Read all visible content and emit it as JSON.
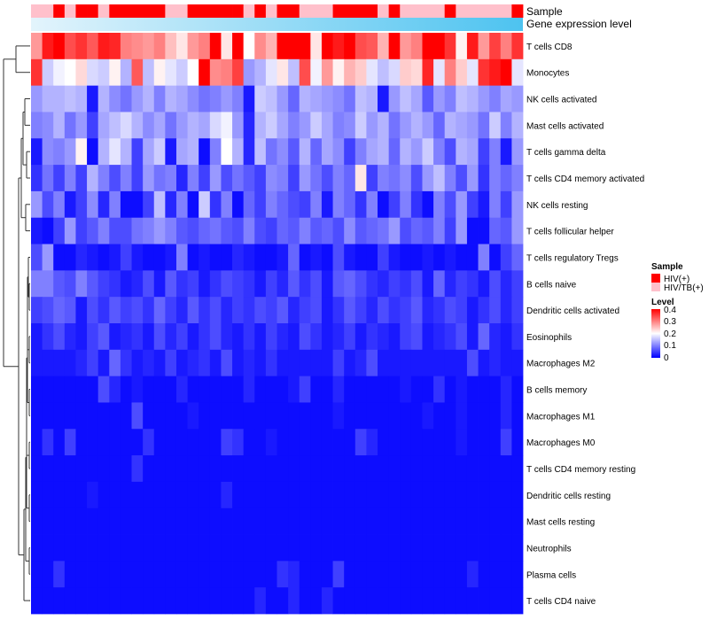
{
  "chart_data": {
    "type": "heatmap",
    "title": "",
    "xlabel": "",
    "ylabel": "",
    "annotations": {
      "sample_track_label": "Sample",
      "gene_track_label": "Gene expression level"
    },
    "legend": {
      "sample": {
        "title": "Sample",
        "entries": [
          {
            "label": "HIV(+)",
            "color": "#FF0000"
          },
          {
            "label": "HIV/TB(+)",
            "color": "#FFC0CB"
          }
        ]
      },
      "level": {
        "title": "Level",
        "ticks": [
          "0.4",
          "0.3",
          "0.2",
          "0.1",
          "0"
        ],
        "range": [
          0,
          0.4
        ],
        "colors": {
          "low": "#0000FF",
          "mid": "#FFFFFF",
          "high": "#FF0000"
        }
      }
    },
    "rows": [
      "T cells CD8",
      "Monocytes",
      "NK cells activated",
      "Mast cells activated",
      "T cells gamma delta",
      "T cells CD4 memory activated",
      "NK cells resting",
      "T cells follicular helper",
      "T cells regulatory  Tregs",
      "B cells naive",
      "Dendritic cells activated",
      "Eosinophils",
      "Macrophages M2",
      "B cells memory",
      "Macrophages M1",
      "Macrophages M0",
      "T cells CD4 memory resting",
      "Dendritic cells resting",
      "Mast cells resting",
      "Neutrophils",
      "Plasma cells",
      "T cells CD4 naive"
    ],
    "column_count": 44,
    "sample_groups": [
      "HIV/TB(+)",
      "HIV/TB(+)",
      "HIV(+)",
      "HIV/TB(+)",
      "HIV(+)",
      "HIV(+)",
      "HIV/TB(+)",
      "HIV(+)",
      "HIV(+)",
      "HIV(+)",
      "HIV(+)",
      "HIV(+)",
      "HIV/TB(+)",
      "HIV/TB(+)",
      "HIV(+)",
      "HIV(+)",
      "HIV(+)",
      "HIV(+)",
      "HIV(+)",
      "HIV/TB(+)",
      "HIV(+)",
      "HIV/TB(+)",
      "HIV(+)",
      "HIV(+)",
      "HIV/TB(+)",
      "HIV/TB(+)",
      "HIV/TB(+)",
      "HIV(+)",
      "HIV(+)",
      "HIV(+)",
      "HIV(+)",
      "HIV/TB(+)",
      "HIV(+)",
      "HIV/TB(+)",
      "HIV/TB(+)",
      "HIV/TB(+)",
      "HIV/TB(+)",
      "HIV(+)",
      "HIV/TB(+)",
      "HIV/TB(+)",
      "HIV/TB(+)",
      "HIV/TB(+)",
      "HIV/TB(+)",
      "HIV(+)"
    ],
    "values": [
      [
        0.28,
        0.38,
        0.4,
        0.34,
        0.36,
        0.33,
        0.38,
        0.37,
        0.3,
        0.29,
        0.28,
        0.3,
        0.25,
        0.22,
        0.28,
        0.3,
        0.4,
        0.22,
        0.4,
        0.2,
        0.29,
        0.26,
        0.4,
        0.4,
        0.4,
        0.22,
        0.4,
        0.38,
        0.4,
        0.34,
        0.33,
        0.26,
        0.4,
        0.28,
        0.3,
        0.4,
        0.4,
        0.36,
        0.21,
        0.38,
        0.28,
        0.35,
        0.3,
        0.36
      ],
      [
        0.36,
        0.16,
        0.19,
        0.2,
        0.23,
        0.17,
        0.16,
        0.21,
        0.14,
        0.33,
        0.15,
        0.21,
        0.18,
        0.16,
        0.2,
        0.4,
        0.29,
        0.3,
        0.35,
        0.12,
        0.14,
        0.18,
        0.22,
        0.15,
        0.34,
        0.19,
        0.28,
        0.21,
        0.26,
        0.24,
        0.18,
        0.15,
        0.17,
        0.24,
        0.23,
        0.37,
        0.18,
        0.3,
        0.24,
        0.18,
        0.36,
        0.38,
        0.4,
        0.18
      ],
      [
        0.12,
        0.14,
        0.14,
        0.15,
        0.14,
        0.02,
        0.14,
        0.11,
        0.09,
        0.12,
        0.14,
        0.1,
        0.14,
        0.13,
        0.11,
        0.09,
        0.1,
        0.12,
        0.1,
        0.02,
        0.16,
        0.15,
        0.12,
        0.08,
        0.14,
        0.13,
        0.12,
        0.11,
        0.09,
        0.15,
        0.14,
        0.02,
        0.12,
        0.15,
        0.13,
        0.07,
        0.12,
        0.1,
        0.15,
        0.14,
        0.12,
        0.1,
        0.13,
        0.12
      ],
      [
        0.1,
        0.11,
        0.14,
        0.09,
        0.12,
        0.05,
        0.13,
        0.15,
        0.17,
        0.14,
        0.11,
        0.13,
        0.09,
        0.12,
        0.14,
        0.13,
        0.17,
        0.19,
        0.12,
        0.03,
        0.14,
        0.16,
        0.13,
        0.1,
        0.12,
        0.16,
        0.13,
        0.1,
        0.11,
        0.16,
        0.12,
        0.14,
        0.09,
        0.12,
        0.14,
        0.12,
        0.08,
        0.14,
        0.13,
        0.12,
        0.09,
        0.16,
        0.1,
        0.14
      ],
      [
        0.02,
        0.11,
        0.1,
        0.12,
        0.21,
        0.01,
        0.14,
        0.18,
        0.14,
        0.05,
        0.13,
        0.16,
        0.02,
        0.13,
        0.14,
        0.01,
        0.1,
        0.2,
        0.14,
        0.03,
        0.15,
        0.09,
        0.11,
        0.07,
        0.14,
        0.08,
        0.13,
        0.11,
        0.05,
        0.1,
        0.13,
        0.14,
        0.08,
        0.14,
        0.12,
        0.16,
        0.1,
        0.06,
        0.14,
        0.13,
        0.05,
        0.1,
        0.02,
        0.12
      ],
      [
        0.04,
        0.09,
        0.05,
        0.1,
        0.05,
        0.14,
        0.1,
        0.06,
        0.1,
        0.05,
        0.12,
        0.09,
        0.1,
        0.03,
        0.1,
        0.05,
        0.12,
        0.06,
        0.09,
        0.07,
        0.05,
        0.11,
        0.1,
        0.05,
        0.12,
        0.09,
        0.06,
        0.1,
        0.08,
        0.22,
        0.05,
        0.1,
        0.09,
        0.11,
        0.06,
        0.12,
        0.15,
        0.1,
        0.06,
        0.12,
        0.04,
        0.1,
        0.08,
        0.1
      ],
      [
        0.12,
        0.06,
        0.1,
        0.02,
        0.05,
        0.11,
        0.03,
        0.1,
        0.01,
        0.01,
        0.05,
        0.15,
        0.03,
        0.1,
        0.01,
        0.16,
        0.04,
        0.1,
        0.01,
        0.08,
        0.05,
        0.1,
        0.08,
        0.06,
        0.05,
        0.1,
        0.02,
        0.1,
        0.08,
        0.04,
        0.1,
        0.01,
        0.05,
        0.1,
        0.04,
        0.01,
        0.1,
        0.06,
        0.12,
        0.05,
        0.02,
        0.1,
        0.05,
        0.12
      ],
      [
        0.02,
        0.01,
        0.05,
        0.12,
        0.05,
        0.07,
        0.1,
        0.06,
        0.06,
        0.09,
        0.1,
        0.12,
        0.1,
        0.07,
        0.06,
        0.08,
        0.09,
        0.07,
        0.06,
        0.1,
        0.06,
        0.05,
        0.08,
        0.07,
        0.1,
        0.07,
        0.08,
        0.06,
        0.11,
        0.07,
        0.08,
        0.09,
        0.12,
        0.06,
        0.08,
        0.07,
        0.1,
        0.05,
        0.12,
        0.01,
        0.01,
        0.08,
        0.07,
        0.12
      ],
      [
        0.06,
        0.12,
        0.01,
        0.01,
        0.03,
        0.02,
        0.01,
        0.02,
        0.05,
        0.02,
        0.01,
        0.01,
        0.02,
        0.1,
        0.01,
        0.02,
        0.01,
        0.01,
        0.03,
        0.02,
        0.01,
        0.01,
        0.02,
        0.08,
        0.01,
        0.02,
        0.01,
        0.06,
        0.02,
        0.01,
        0.01,
        0.05,
        0.02,
        0.01,
        0.01,
        0.02,
        0.01,
        0.02,
        0.01,
        0.01,
        0.1,
        0.01,
        0.05,
        0.08
      ],
      [
        0.1,
        0.1,
        0.07,
        0.06,
        0.1,
        0.07,
        0.05,
        0.04,
        0.02,
        0.03,
        0.06,
        0.02,
        0.07,
        0.04,
        0.05,
        0.02,
        0.04,
        0.06,
        0.05,
        0.04,
        0.02,
        0.05,
        0.03,
        0.07,
        0.04,
        0.06,
        0.02,
        0.07,
        0.08,
        0.06,
        0.04,
        0.03,
        0.05,
        0.04,
        0.06,
        0.02,
        0.08,
        0.03,
        0.05,
        0.04,
        0.02,
        0.06,
        0.03,
        0.05
      ],
      [
        0.05,
        0.06,
        0.08,
        0.07,
        0.02,
        0.06,
        0.04,
        0.07,
        0.05,
        0.06,
        0.04,
        0.08,
        0.05,
        0.03,
        0.07,
        0.04,
        0.06,
        0.03,
        0.05,
        0.04,
        0.06,
        0.05,
        0.07,
        0.03,
        0.05,
        0.06,
        0.02,
        0.04,
        0.07,
        0.05,
        0.03,
        0.06,
        0.04,
        0.05,
        0.07,
        0.03,
        0.04,
        0.06,
        0.05,
        0.02,
        0.04,
        0.06,
        0.03,
        0.05
      ],
      [
        0.02,
        0.04,
        0.06,
        0.03,
        0.02,
        0.05,
        0.07,
        0.02,
        0.03,
        0.04,
        0.02,
        0.06,
        0.03,
        0.05,
        0.02,
        0.04,
        0.06,
        0.03,
        0.02,
        0.04,
        0.02,
        0.05,
        0.03,
        0.02,
        0.06,
        0.04,
        0.02,
        0.03,
        0.05,
        0.02,
        0.04,
        0.03,
        0.02,
        0.05,
        0.06,
        0.02,
        0.03,
        0.04,
        0.06,
        0.02,
        0.08,
        0.03,
        0.02,
        0.04
      ],
      [
        0.02,
        0.02,
        0.02,
        0.02,
        0.03,
        0.05,
        0.02,
        0.08,
        0.04,
        0.02,
        0.03,
        0.02,
        0.05,
        0.02,
        0.03,
        0.04,
        0.02,
        0.06,
        0.02,
        0.03,
        0.02,
        0.04,
        0.02,
        0.02,
        0.02,
        0.02,
        0.02,
        0.05,
        0.02,
        0.03,
        0.06,
        0.02,
        0.02,
        0.02,
        0.02,
        0.02,
        0.02,
        0.02,
        0.02,
        0.06,
        0.02,
        0.03,
        0.02,
        0.02
      ],
      [
        0.01,
        0.01,
        0.01,
        0.01,
        0.01,
        0.01,
        0.06,
        0.03,
        0.01,
        0.02,
        0.01,
        0.01,
        0.01,
        0.03,
        0.01,
        0.01,
        0.01,
        0.01,
        0.01,
        0.03,
        0.01,
        0.01,
        0.01,
        0.02,
        0.05,
        0.01,
        0.01,
        0.03,
        0.01,
        0.01,
        0.01,
        0.01,
        0.01,
        0.02,
        0.01,
        0.01,
        0.04,
        0.01,
        0.02,
        0.01,
        0.01,
        0.01,
        0.03,
        0.01
      ],
      [
        0.01,
        0.01,
        0.01,
        0.01,
        0.01,
        0.01,
        0.01,
        0.01,
        0.01,
        0.06,
        0.01,
        0.01,
        0.01,
        0.01,
        0.02,
        0.01,
        0.01,
        0.01,
        0.01,
        0.01,
        0.01,
        0.01,
        0.01,
        0.01,
        0.01,
        0.01,
        0.01,
        0.02,
        0.01,
        0.01,
        0.01,
        0.01,
        0.01,
        0.01,
        0.01,
        0.02,
        0.01,
        0.01,
        0.02,
        0.01,
        0.01,
        0.01,
        0.03,
        0.01
      ],
      [
        0.01,
        0.04,
        0.01,
        0.05,
        0.01,
        0.01,
        0.01,
        0.01,
        0.01,
        0.01,
        0.04,
        0.01,
        0.01,
        0.01,
        0.01,
        0.01,
        0.01,
        0.05,
        0.04,
        0.01,
        0.01,
        0.02,
        0.01,
        0.01,
        0.01,
        0.01,
        0.01,
        0.01,
        0.01,
        0.05,
        0.03,
        0.01,
        0.01,
        0.01,
        0.01,
        0.01,
        0.01,
        0.01,
        0.02,
        0.01,
        0.01,
        0.01,
        0.05,
        0.01
      ],
      [
        0.01,
        0.01,
        0.01,
        0.01,
        0.01,
        0.01,
        0.01,
        0.01,
        0.01,
        0.04,
        0.01,
        0.01,
        0.01,
        0.01,
        0.01,
        0.01,
        0.01,
        0.01,
        0.01,
        0.01,
        0.01,
        0.01,
        0.01,
        0.01,
        0.01,
        0.01,
        0.01,
        0.01,
        0.01,
        0.01,
        0.01,
        0.01,
        0.01,
        0.01,
        0.01,
        0.01,
        0.01,
        0.01,
        0.01,
        0.01,
        0.01,
        0.01,
        0.01,
        0.01
      ],
      [
        0.01,
        0.01,
        0.01,
        0.01,
        0.01,
        0.02,
        0.01,
        0.01,
        0.01,
        0.01,
        0.01,
        0.01,
        0.01,
        0.01,
        0.01,
        0.01,
        0.01,
        0.03,
        0.01,
        0.01,
        0.01,
        0.01,
        0.01,
        0.01,
        0.01,
        0.01,
        0.01,
        0.01,
        0.01,
        0.01,
        0.01,
        0.01,
        0.01,
        0.01,
        0.01,
        0.01,
        0.01,
        0.01,
        0.01,
        0.01,
        0.01,
        0.01,
        0.01,
        0.01
      ],
      [
        0.01,
        0.01,
        0.01,
        0.01,
        0.01,
        0.01,
        0.01,
        0.01,
        0.01,
        0.01,
        0.01,
        0.01,
        0.01,
        0.01,
        0.01,
        0.01,
        0.01,
        0.01,
        0.01,
        0.01,
        0.01,
        0.01,
        0.01,
        0.01,
        0.01,
        0.01,
        0.01,
        0.01,
        0.01,
        0.01,
        0.01,
        0.01,
        0.01,
        0.01,
        0.01,
        0.01,
        0.01,
        0.01,
        0.01,
        0.01,
        0.01,
        0.01,
        0.01,
        0.01
      ],
      [
        0.01,
        0.01,
        0.01,
        0.01,
        0.01,
        0.01,
        0.01,
        0.01,
        0.01,
        0.01,
        0.01,
        0.01,
        0.01,
        0.01,
        0.01,
        0.01,
        0.01,
        0.01,
        0.01,
        0.01,
        0.01,
        0.01,
        0.01,
        0.01,
        0.01,
        0.01,
        0.01,
        0.01,
        0.01,
        0.01,
        0.01,
        0.01,
        0.01,
        0.01,
        0.01,
        0.01,
        0.01,
        0.01,
        0.01,
        0.01,
        0.01,
        0.01,
        0.01,
        0.01
      ],
      [
        0.01,
        0.01,
        0.04,
        0.01,
        0.01,
        0.01,
        0.01,
        0.01,
        0.01,
        0.01,
        0.01,
        0.01,
        0.01,
        0.01,
        0.01,
        0.01,
        0.01,
        0.01,
        0.01,
        0.01,
        0.01,
        0.01,
        0.04,
        0.03,
        0.01,
        0.01,
        0.01,
        0.05,
        0.01,
        0.01,
        0.01,
        0.01,
        0.01,
        0.01,
        0.01,
        0.01,
        0.01,
        0.01,
        0.01,
        0.03,
        0.01,
        0.01,
        0.01,
        0.01
      ],
      [
        0.01,
        0.01,
        0.01,
        0.01,
        0.01,
        0.01,
        0.01,
        0.01,
        0.01,
        0.01,
        0.01,
        0.01,
        0.01,
        0.01,
        0.01,
        0.01,
        0.01,
        0.01,
        0.01,
        0.01,
        0.03,
        0.01,
        0.01,
        0.03,
        0.01,
        0.01,
        0.03,
        0.01,
        0.01,
        0.01,
        0.01,
        0.01,
        0.01,
        0.01,
        0.01,
        0.01,
        0.01,
        0.01,
        0.01,
        0.01,
        0.01,
        0.01,
        0.01,
        0.01
      ]
    ]
  }
}
